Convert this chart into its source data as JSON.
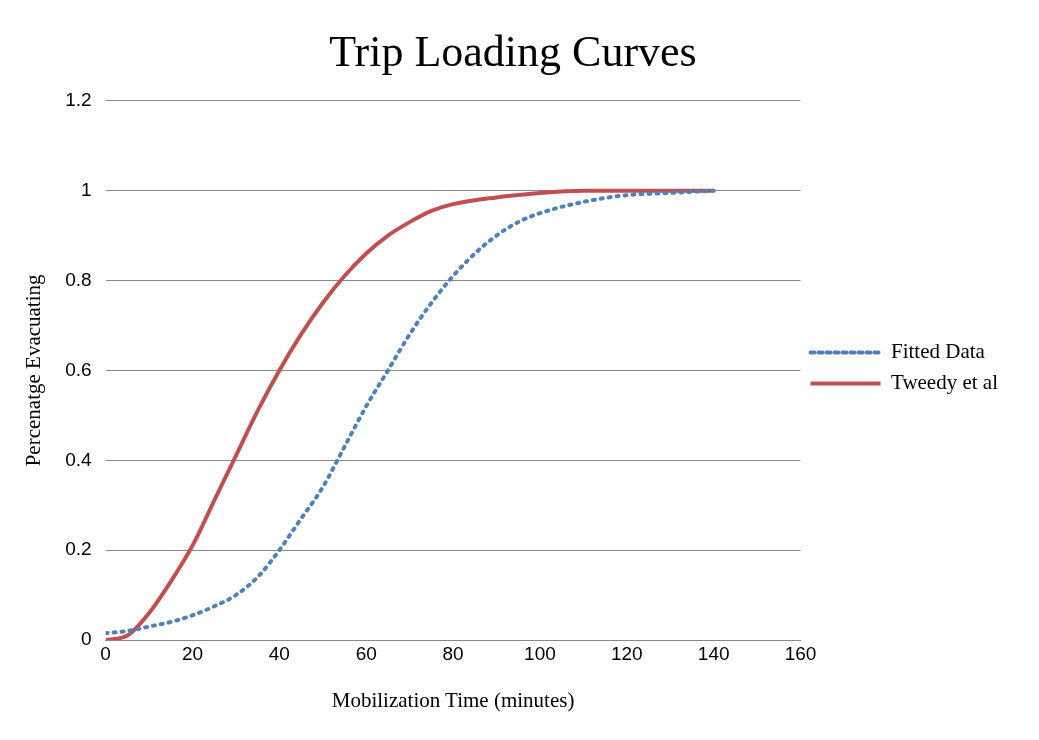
{
  "chart_data": {
    "type": "line",
    "title": "Trip Loading Curves",
    "xlabel": "Mobilization Time (minutes)",
    "ylabel": "Percenatge Evacuating",
    "xlim": [
      0,
      160
    ],
    "xticks": [
      0,
      20,
      40,
      60,
      80,
      100,
      120,
      140,
      160
    ],
    "ylim": [
      0,
      1.2
    ],
    "yticks": [
      0,
      0.2,
      0.4,
      0.6,
      0.8,
      1,
      1.2
    ],
    "grid": "y",
    "legend": "right",
    "series": [
      {
        "name": "Fitted Data",
        "color": "#4f81bd",
        "line_style": "dotted",
        "x": [
          0,
          5,
          10,
          15,
          20,
          25,
          30,
          35,
          40,
          45,
          50,
          55,
          60,
          65,
          70,
          75,
          80,
          85,
          90,
          95,
          100,
          110,
          120,
          130,
          140
        ],
        "values": [
          0.015,
          0.02,
          0.03,
          0.04,
          0.055,
          0.075,
          0.1,
          0.14,
          0.2,
          0.27,
          0.34,
          0.43,
          0.52,
          0.6,
          0.68,
          0.75,
          0.81,
          0.86,
          0.9,
          0.93,
          0.95,
          0.975,
          0.99,
          0.995,
          1
        ]
      },
      {
        "name": "Tweedy et al",
        "color": "#c0504d",
        "line_style": "solid",
        "x": [
          0,
          5,
          10,
          15,
          20,
          25,
          30,
          35,
          40,
          45,
          50,
          55,
          60,
          65,
          70,
          75,
          80,
          90,
          100,
          110,
          120,
          130,
          140
        ],
        "values": [
          0,
          0.01,
          0.06,
          0.13,
          0.21,
          0.31,
          0.41,
          0.51,
          0.6,
          0.68,
          0.75,
          0.81,
          0.86,
          0.9,
          0.93,
          0.955,
          0.97,
          0.985,
          0.995,
          1,
          1,
          1,
          1
        ]
      }
    ]
  }
}
